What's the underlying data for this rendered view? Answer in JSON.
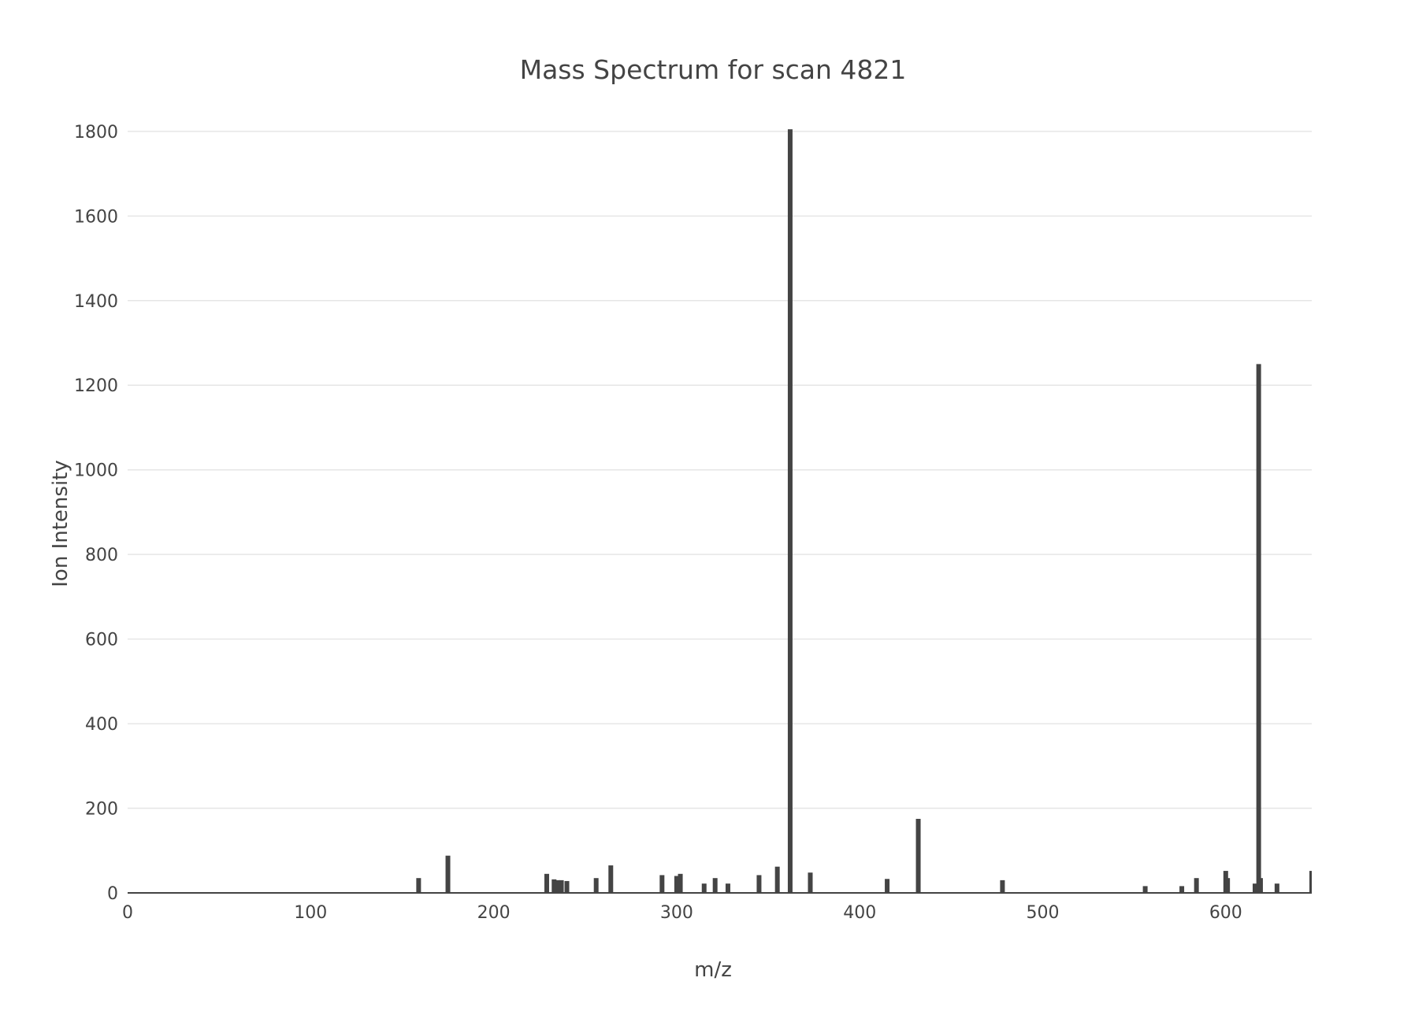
{
  "chart_data": {
    "type": "bar",
    "title": "Mass Spectrum for scan 4821",
    "xlabel": "m/z",
    "ylabel": "Ion Intensity",
    "xlim": [
      0,
      647
    ],
    "ylim": [
      0,
      1850
    ],
    "x_ticks": [
      0,
      100,
      200,
      300,
      400,
      500,
      600
    ],
    "y_ticks": [
      0,
      200,
      400,
      600,
      800,
      1000,
      1200,
      1400,
      1600,
      1800
    ],
    "grid": true,
    "legend": "none",
    "bar_color": "#444444",
    "series": [
      {
        "x": [
          159,
          175,
          229,
          233,
          235,
          237,
          240,
          256,
          264,
          292,
          300,
          302,
          315,
          321,
          328,
          345,
          355,
          362,
          373,
          415,
          432,
          478,
          556,
          576,
          584,
          600,
          601,
          616,
          618,
          619,
          628,
          647
        ],
        "values": [
          35,
          88,
          45,
          32,
          30,
          30,
          28,
          35,
          65,
          42,
          40,
          45,
          22,
          35,
          22,
          42,
          62,
          1805,
          48,
          33,
          175,
          30,
          16,
          16,
          35,
          52,
          35,
          22,
          1250,
          35,
          22,
          52
        ]
      }
    ]
  }
}
